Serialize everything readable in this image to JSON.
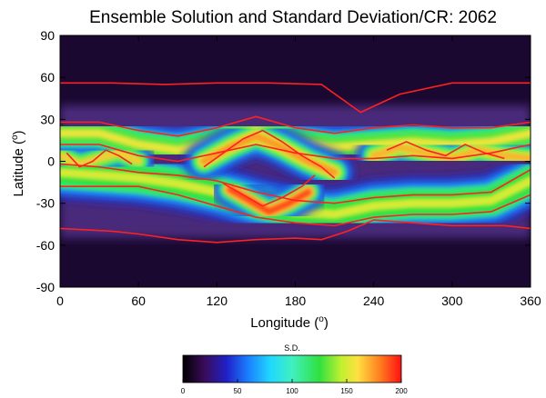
{
  "chart_data": {
    "type": "heatmap",
    "title": "Ensemble Solution and Standard Deviation/CR: 2062",
    "xlabel_base": "Longitude (",
    "ylabel_base": "Latitude (",
    "unit_symbol": "o",
    "unit_close": ")",
    "xlim": [
      0,
      360
    ],
    "ylim": [
      -90,
      90
    ],
    "xticks": [
      0,
      60,
      120,
      180,
      240,
      300,
      360
    ],
    "yticks": [
      90,
      60,
      30,
      0,
      -30,
      -60,
      -90
    ],
    "colorbar": {
      "label": "S.D.",
      "range": [
        0,
        200
      ],
      "ticks": [
        0,
        50,
        100,
        150,
        200
      ],
      "stops": [
        {
          "v": 0,
          "color": "#000000"
        },
        {
          "v": 20,
          "color": "#3a0c5a"
        },
        {
          "v": 40,
          "color": "#2020c8"
        },
        {
          "v": 60,
          "color": "#1a80ff"
        },
        {
          "v": 80,
          "color": "#20d8ff"
        },
        {
          "v": 100,
          "color": "#40f0c0"
        },
        {
          "v": 125,
          "color": "#30e040"
        },
        {
          "v": 145,
          "color": "#c0f030"
        },
        {
          "v": 160,
          "color": "#ffe040"
        },
        {
          "v": 180,
          "color": "#ff8020"
        },
        {
          "v": 200,
          "color": "#ff1010"
        }
      ]
    },
    "contour_color": "#ff2020",
    "background_color": "#1a0830",
    "bands": [
      {
        "lon": [
          0,
          30,
          60,
          90,
          120,
          150,
          180,
          210,
          240,
          270,
          300,
          330,
          360
        ],
        "lat": [
          20,
          20,
          12,
          8,
          14,
          22,
          14,
          10,
          12,
          14,
          12,
          14,
          20
        ],
        "width": 26,
        "level": 155
      },
      {
        "lon": [
          0,
          30,
          60,
          90,
          120,
          150,
          180,
          210,
          240,
          270,
          300,
          330,
          360
        ],
        "lat": [
          -8,
          -10,
          -12,
          -16,
          -22,
          -30,
          -36,
          -38,
          -32,
          -30,
          -30,
          -28,
          -14
        ],
        "width": 30,
        "level": 150
      },
      {
        "lon": [
          110,
          130,
          150,
          170,
          190,
          210
        ],
        "lat": [
          0,
          10,
          18,
          10,
          0,
          -8
        ],
        "width": 22,
        "level": 175
      },
      {
        "lon": [
          130,
          145,
          160,
          175,
          190
        ],
        "lat": [
          -20,
          -28,
          -36,
          -30,
          -22
        ],
        "width": 20,
        "level": 190
      },
      {
        "lon": [
          0,
          15,
          30,
          45,
          60
        ],
        "lat": [
          4,
          -2,
          2,
          6,
          0
        ],
        "width": 18,
        "level": 165
      },
      {
        "lon": [
          240,
          260,
          280,
          300,
          320,
          340,
          360
        ],
        "lat": [
          4,
          10,
          6,
          2,
          8,
          4,
          2
        ],
        "width": 20,
        "level": 170
      }
    ],
    "contours": [
      {
        "lon": [
          0,
          40,
          80,
          120,
          160,
          200,
          230,
          260,
          300,
          340,
          360
        ],
        "lat": [
          56,
          56,
          55,
          56,
          56,
          55,
          35,
          48,
          56,
          56,
          56
        ]
      },
      {
        "lon": [
          0,
          40,
          60,
          90,
          120,
          150,
          180,
          200,
          220,
          240,
          270,
          300,
          340,
          360
        ],
        "lat": [
          -48,
          -50,
          -52,
          -56,
          -58,
          -56,
          -55,
          -56,
          -50,
          -42,
          -44,
          -46,
          -46,
          -48
        ]
      },
      {
        "lon": [
          0,
          30,
          60,
          90,
          120,
          150,
          180,
          210,
          240,
          270,
          300,
          330,
          360
        ],
        "lat": [
          28,
          28,
          22,
          18,
          24,
          32,
          24,
          20,
          24,
          26,
          24,
          24,
          28
        ]
      },
      {
        "lon": [
          0,
          30,
          60,
          90,
          120,
          150,
          180,
          210,
          240,
          270,
          300,
          330,
          360
        ],
        "lat": [
          12,
          12,
          4,
          0,
          6,
          12,
          6,
          2,
          2,
          4,
          2,
          6,
          12
        ]
      },
      {
        "lon": [
          0,
          30,
          60,
          90,
          120,
          150,
          180,
          210,
          240,
          270,
          300,
          330,
          360
        ],
        "lat": [
          -2,
          -4,
          -8,
          -10,
          -14,
          -22,
          -28,
          -30,
          -26,
          -24,
          -24,
          -22,
          -6
        ]
      },
      {
        "lon": [
          0,
          30,
          60,
          90,
          120,
          150,
          180,
          210,
          240,
          270,
          300,
          330,
          360
        ],
        "lat": [
          -18,
          -18,
          -18,
          -24,
          -32,
          -40,
          -44,
          -46,
          -40,
          -38,
          -38,
          -36,
          -24
        ]
      },
      {
        "lon": [
          110,
          125,
          140,
          155,
          170,
          185,
          200,
          210
        ],
        "lat": [
          -4,
          6,
          16,
          22,
          14,
          4,
          -4,
          -12
        ]
      },
      {
        "lon": [
          125,
          140,
          155,
          170,
          185,
          195
        ],
        "lat": [
          -16,
          -24,
          -32,
          -26,
          -18,
          -10
        ]
      },
      {
        "lon": [
          5,
          15,
          25,
          35,
          45,
          55
        ],
        "lat": [
          6,
          -4,
          0,
          8,
          4,
          -2
        ]
      },
      {
        "lon": [
          250,
          265,
          280,
          295,
          310,
          325,
          340
        ],
        "lat": [
          8,
          14,
          8,
          4,
          12,
          6,
          2
        ]
      }
    ]
  }
}
